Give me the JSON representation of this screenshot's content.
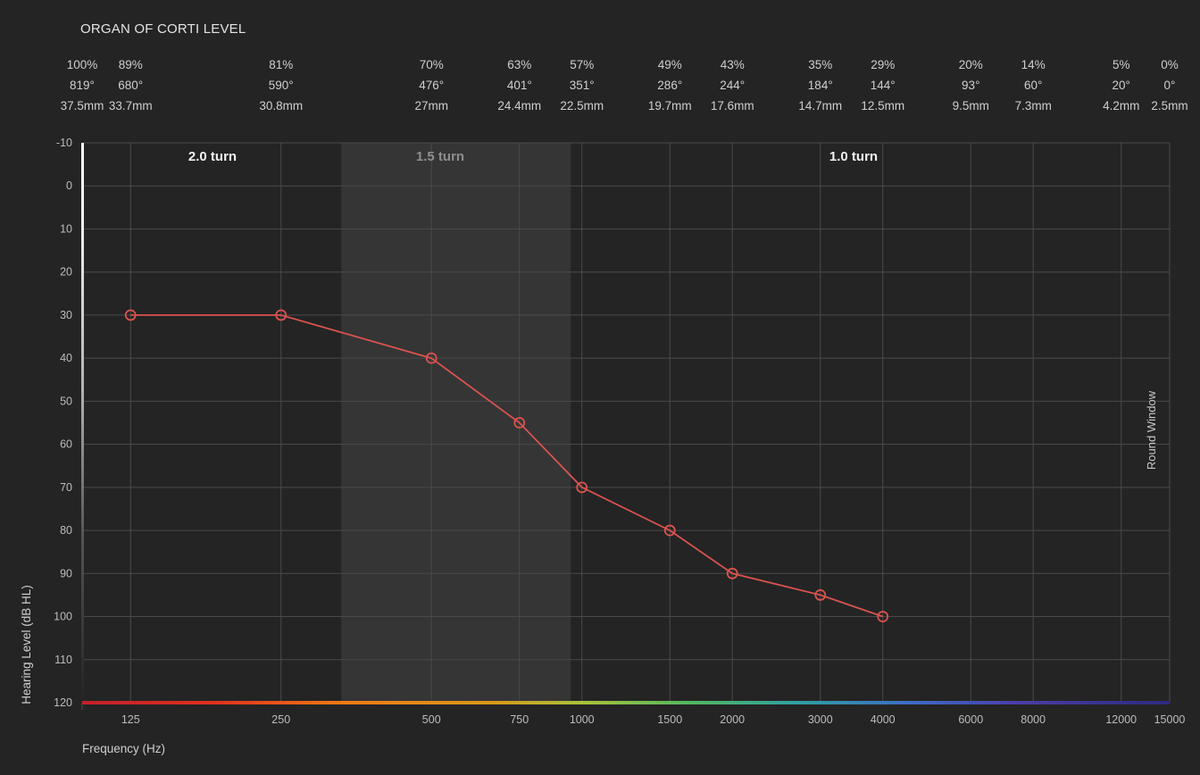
{
  "page_title": "ORGAN OF CORTI LEVEL",
  "colors": {
    "background": "#242424",
    "grid": "#4a4a4a",
    "band": "#353535",
    "series": "#d9534f",
    "text": "#d8d8d8"
  },
  "top_scale": [
    {
      "freq": 100,
      "percent": "100%",
      "degrees": "819°",
      "length": "37.5mm"
    },
    {
      "freq": 125,
      "percent": "89%",
      "degrees": "680°",
      "length": "33.7mm"
    },
    {
      "freq": 250,
      "percent": "81%",
      "degrees": "590°",
      "length": "30.8mm"
    },
    {
      "freq": 500,
      "percent": "70%",
      "degrees": "476°",
      "length": "27mm"
    },
    {
      "freq": 750,
      "percent": "63%",
      "degrees": "401°",
      "length": "24.4mm"
    },
    {
      "freq": 1000,
      "percent": "57%",
      "degrees": "351°",
      "length": "22.5mm"
    },
    {
      "freq": 1500,
      "percent": "49%",
      "degrees": "286°",
      "length": "19.7mm"
    },
    {
      "freq": 2000,
      "percent": "43%",
      "degrees": "244°",
      "length": "17.6mm"
    },
    {
      "freq": 3000,
      "percent": "35%",
      "degrees": "184°",
      "length": "14.7mm"
    },
    {
      "freq": 4000,
      "percent": "29%",
      "degrees": "144°",
      "length": "12.5mm"
    },
    {
      "freq": 6000,
      "percent": "20%",
      "degrees": "93°",
      "length": "9.5mm"
    },
    {
      "freq": 8000,
      "percent": "14%",
      "degrees": "60°",
      "length": "7.3mm"
    },
    {
      "freq": 12000,
      "percent": "5%",
      "degrees": "20°",
      "length": "4.2mm"
    },
    {
      "freq": 15000,
      "percent": "0%",
      "degrees": "0°",
      "length": "2.5mm"
    }
  ],
  "chart_data": {
    "type": "line",
    "xlabel": "Frequency (Hz)",
    "ylabel": "Hearing Level (dB HL)",
    "x_scale": "log",
    "xlim": [
      100,
      15000
    ],
    "ylim": [
      -10,
      120
    ],
    "y_inverted": true,
    "grid": true,
    "x_ticks": [
      125,
      250,
      500,
      750,
      1000,
      1500,
      2000,
      3000,
      4000,
      6000,
      8000,
      12000,
      15000
    ],
    "y_ticks": [
      -10,
      0,
      10,
      20,
      30,
      40,
      50,
      60,
      70,
      80,
      90,
      100,
      110,
      120
    ],
    "series": [
      {
        "x": [
          125,
          250,
          500,
          750,
          1000,
          1500,
          2000,
          3000,
          4000
        ],
        "y": [
          30,
          30,
          40,
          55,
          70,
          80,
          90,
          95,
          100
        ],
        "color": "#d9534f",
        "marker": "open-circle"
      }
    ],
    "regions": [
      {
        "label": "2.0 turn",
        "start": 100,
        "end": 330,
        "shaded": false,
        "label_color": "#f2f2f2"
      },
      {
        "label": "1.5 turn",
        "start": 330,
        "end": 950,
        "shaded": true,
        "label_color": "#8e8e8e"
      },
      {
        "label": "1.0 turn",
        "start": 950,
        "end": 15000,
        "shaded": false,
        "label_color": "#f2f2f2"
      }
    ],
    "annotations": [
      {
        "text": "Round Window",
        "x": 15000,
        "orientation": "vertical",
        "placement": "right"
      }
    ]
  }
}
